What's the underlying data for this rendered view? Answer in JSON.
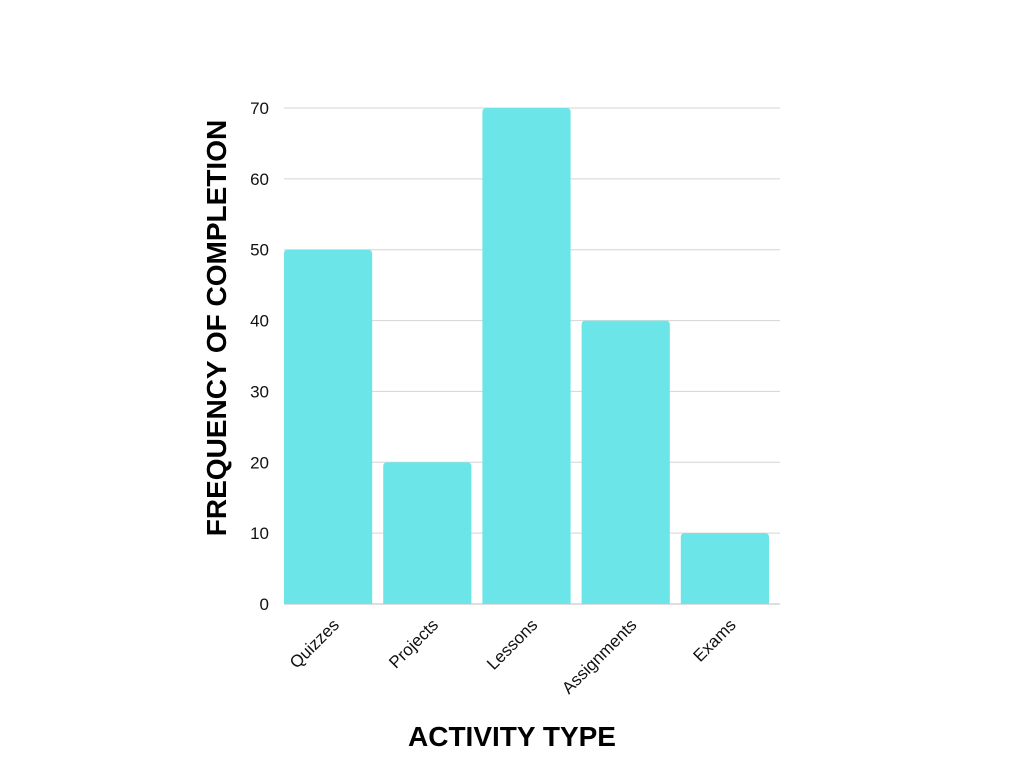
{
  "chart_data": {
    "type": "bar",
    "categories": [
      "Quizzes",
      "Projects",
      "Lessons",
      "Assignments",
      "Exams"
    ],
    "values": [
      50,
      20,
      70,
      40,
      10
    ],
    "title": "",
    "xlabel": "ACTIVITY TYPE",
    "ylabel": "FREQUENCY OF COMPLETION",
    "ylim": [
      0,
      70
    ],
    "yticks": [
      0,
      10,
      20,
      30,
      40,
      50,
      60,
      70
    ],
    "grid": true,
    "legend": "none",
    "bar_color": "#6be5e8"
  }
}
